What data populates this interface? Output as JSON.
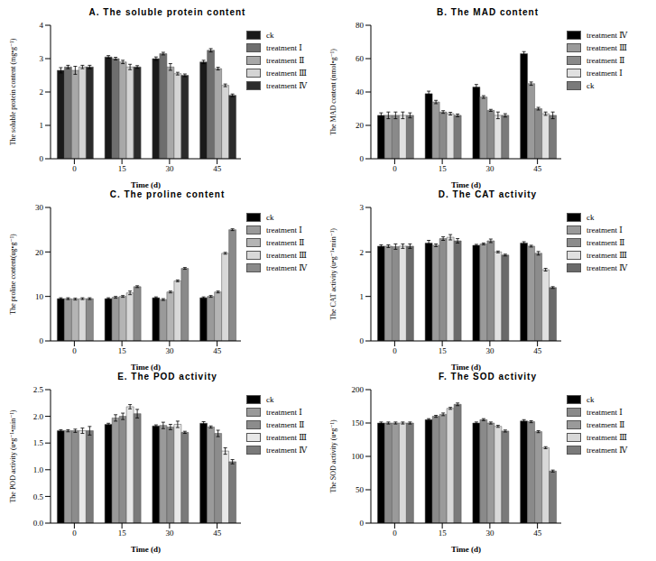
{
  "chart_data": [
    {
      "type": "bar",
      "title": "A. The soluble protein content",
      "x_label": "Time (d)",
      "y_label": "The soluble protein content (mg•g⁻¹)",
      "legend": "right",
      "categories": [
        "0",
        "15",
        "30",
        "45"
      ],
      "ylim": [
        0,
        4
      ],
      "yticks": [
        0,
        1,
        2,
        3,
        4
      ],
      "series": [
        {
          "name": "ck",
          "color": "#1a1a1a",
          "values": [
            2.65,
            3.05,
            3.0,
            2.9
          ],
          "errors": [
            0.08,
            0.04,
            0.05,
            0.05
          ]
        },
        {
          "name": "treatment Ⅰ",
          "color": "#6e6e6e",
          "values": [
            2.75,
            3.0,
            3.15,
            3.25
          ],
          "errors": [
            0.05,
            0.04,
            0.04,
            0.05
          ]
        },
        {
          "name": "treatment Ⅱ",
          "color": "#a8a8a8",
          "values": [
            2.65,
            2.9,
            2.75,
            2.7
          ],
          "errors": [
            0.12,
            0.05,
            0.1,
            0.04
          ]
        },
        {
          "name": "treatment Ⅲ",
          "color": "#d4d4d4",
          "values": [
            2.75,
            2.75,
            2.55,
            2.2
          ],
          "errors": [
            0.05,
            0.08,
            0.04,
            0.04
          ]
        },
        {
          "name": "treatment Ⅳ",
          "color": "#2b2b2b",
          "values": [
            2.75,
            2.75,
            2.5,
            1.9
          ],
          "errors": [
            0.05,
            0.04,
            0.04,
            0.04
          ]
        }
      ]
    },
    {
      "type": "bar",
      "title": "B. The MAD content",
      "x_label": "Time (d)",
      "y_label": "The MAD content (nmol•g⁻¹)",
      "legend": "right",
      "categories": [
        "0",
        "15",
        "30",
        "45"
      ],
      "ylim": [
        0,
        80
      ],
      "yticks": [
        0,
        20,
        40,
        60,
        80
      ],
      "series": [
        {
          "name": "treatment Ⅳ",
          "color": "#000000",
          "values": [
            26,
            39,
            43,
            63
          ],
          "errors": [
            1.5,
            1.5,
            1.5,
            1.2
          ]
        },
        {
          "name": "treatment Ⅲ",
          "color": "#9a9a9a",
          "values": [
            26,
            34,
            37,
            45
          ],
          "errors": [
            2,
            1,
            0.8,
            1
          ]
        },
        {
          "name": "treatment Ⅱ",
          "color": "#8a8a8a",
          "values": [
            26,
            28,
            29,
            30
          ],
          "errors": [
            2,
            0.8,
            0.6,
            0.8
          ]
        },
        {
          "name": "treatment Ⅰ",
          "color": "#e0e0e0",
          "values": [
            26,
            27,
            26,
            27
          ],
          "errors": [
            2,
            0.8,
            2,
            1
          ]
        },
        {
          "name": "ck",
          "color": "#7a7a7a",
          "values": [
            26,
            26,
            26,
            26
          ],
          "errors": [
            1.5,
            0.8,
            1,
            2
          ]
        }
      ]
    },
    {
      "type": "bar",
      "title": "C. The proline content",
      "x_label": "Time (d)",
      "y_label": "The proline content(ug•g⁻¹)",
      "legend": "right",
      "categories": [
        "0",
        "15",
        "30",
        "45"
      ],
      "ylim": [
        0,
        30
      ],
      "yticks": [
        0,
        10,
        20,
        30
      ],
      "series": [
        {
          "name": "ck",
          "color": "#000000",
          "values": [
            9.5,
            9.5,
            9.7,
            9.7
          ],
          "errors": [
            0.2,
            0.2,
            0.2,
            0.2
          ]
        },
        {
          "name": "treatment Ⅰ",
          "color": "#9a9a9a",
          "values": [
            9.5,
            9.8,
            9.3,
            10
          ],
          "errors": [
            0.2,
            0.2,
            0.2,
            0.2
          ]
        },
        {
          "name": "treatment Ⅱ",
          "color": "#b4b4b4",
          "values": [
            9.4,
            10,
            11,
            11
          ],
          "errors": [
            0.2,
            0.2,
            0.2,
            0.2
          ]
        },
        {
          "name": "treatment Ⅲ",
          "color": "#d8d8d8",
          "values": [
            9.5,
            10.8,
            13.5,
            19.7
          ],
          "errors": [
            0.2,
            0.4,
            0.2,
            0.2
          ]
        },
        {
          "name": "treatment Ⅳ",
          "color": "#8a8a8a",
          "values": [
            9.5,
            12.2,
            16.3,
            25
          ],
          "errors": [
            0.2,
            0.2,
            0.2,
            0.2
          ]
        }
      ]
    },
    {
      "type": "bar",
      "title": "D. The CAT activity",
      "x_label": "Time (d)",
      "y_label": "The CAT activity (u•g⁻¹•min⁻¹)",
      "legend": "right",
      "categories": [
        "0",
        "15",
        "30",
        "45"
      ],
      "ylim": [
        0,
        3
      ],
      "yticks": [
        0,
        1,
        2,
        3
      ],
      "series": [
        {
          "name": "ck",
          "color": "#000000",
          "values": [
            2.13,
            2.2,
            2.15,
            2.2
          ],
          "errors": [
            0.03,
            0.06,
            0.02,
            0.03
          ]
        },
        {
          "name": "treatment Ⅰ",
          "color": "#9a9a9a",
          "values": [
            2.13,
            2.15,
            2.18,
            2.13
          ],
          "errors": [
            0.03,
            0.03,
            0.02,
            0.02
          ]
        },
        {
          "name": "treatment Ⅱ",
          "color": "#8c8c8c",
          "values": [
            2.12,
            2.3,
            2.25,
            1.97
          ],
          "errors": [
            0.06,
            0.04,
            0.04,
            0.04
          ]
        },
        {
          "name": "treatment Ⅲ",
          "color": "#e0e0e0",
          "values": [
            2.13,
            2.33,
            2.0,
            1.6
          ],
          "errors": [
            0.05,
            0.06,
            0.02,
            0.03
          ]
        },
        {
          "name": "treatment Ⅳ",
          "color": "#6a6a6a",
          "values": [
            2.13,
            2.25,
            1.93,
            1.2
          ],
          "errors": [
            0.05,
            0.05,
            0.02,
            0.02
          ]
        }
      ]
    },
    {
      "type": "bar",
      "title": "E. The POD activity",
      "x_label": "Time (d)",
      "y_label": "The POD activity (u•g⁻¹•min⁻¹)",
      "legend": "right",
      "categories": [
        "0",
        "15",
        "30",
        "45"
      ],
      "ylim": [
        0,
        2.5
      ],
      "yticks": [
        {
          "value": 0,
          "label": "0.0"
        },
        {
          "value": 0.5,
          "label": "0.5"
        },
        {
          "value": 1,
          "label": "1.0"
        },
        {
          "value": 1.5,
          "label": "1.5"
        },
        {
          "value": 2,
          "label": "2.0"
        },
        {
          "value": 2.5,
          "label": "2.5"
        }
      ],
      "series": [
        {
          "name": "ck",
          "color": "#000000",
          "values": [
            1.73,
            1.85,
            1.82,
            1.87
          ],
          "errors": [
            0.02,
            0.02,
            0.02,
            0.03
          ]
        },
        {
          "name": "treatment Ⅰ",
          "color": "#9a9a9a",
          "values": [
            1.73,
            1.97,
            1.83,
            1.8
          ],
          "errors": [
            0.02,
            0.06,
            0.06,
            0.02
          ]
        },
        {
          "name": "treatment Ⅱ",
          "color": "#8c8c8c",
          "values": [
            1.73,
            2.0,
            1.8,
            1.68
          ],
          "errors": [
            0.03,
            0.06,
            0.05,
            0.06
          ]
        },
        {
          "name": "treatment Ⅲ",
          "color": "#e8e8e8",
          "values": [
            1.73,
            2.18,
            1.85,
            1.35
          ],
          "errors": [
            0.05,
            0.04,
            0.06,
            0.06
          ]
        },
        {
          "name": "treatment Ⅳ",
          "color": "#7a7a7a",
          "values": [
            1.73,
            2.05,
            1.7,
            1.15
          ],
          "errors": [
            0.08,
            0.08,
            0.02,
            0.04
          ]
        }
      ]
    },
    {
      "type": "bar",
      "title": "F. The SOD activity",
      "x_label": "Time (d)",
      "y_label": "The SOD activity (u•g⁻¹)",
      "legend": "right",
      "categories": [
        "0",
        "15",
        "30",
        "45"
      ],
      "ylim": [
        0,
        200
      ],
      "yticks": [
        0,
        50,
        100,
        150,
        200
      ],
      "series": [
        {
          "name": "ck",
          "color": "#000000",
          "values": [
            150,
            155,
            150,
            153
          ],
          "errors": [
            1.5,
            1.5,
            1.5,
            2
          ]
        },
        {
          "name": "treatment Ⅰ",
          "color": "#8a8a8a",
          "values": [
            150,
            160,
            155,
            152
          ],
          "errors": [
            1.5,
            1.5,
            1.5,
            1.5
          ]
        },
        {
          "name": "treatment Ⅱ",
          "color": "#9a9a9a",
          "values": [
            150,
            163,
            150,
            137
          ],
          "errors": [
            1.5,
            2,
            1.5,
            1.5
          ]
        },
        {
          "name": "treatment Ⅲ",
          "color": "#d8d8d8",
          "values": [
            150,
            172,
            145,
            113
          ],
          "errors": [
            1.5,
            1.5,
            1.5,
            1.5
          ]
        },
        {
          "name": "treatment Ⅳ",
          "color": "#7a7a7a",
          "values": [
            150,
            178,
            138,
            78
          ],
          "errors": [
            1.5,
            2,
            1.5,
            1.5
          ]
        }
      ]
    }
  ]
}
